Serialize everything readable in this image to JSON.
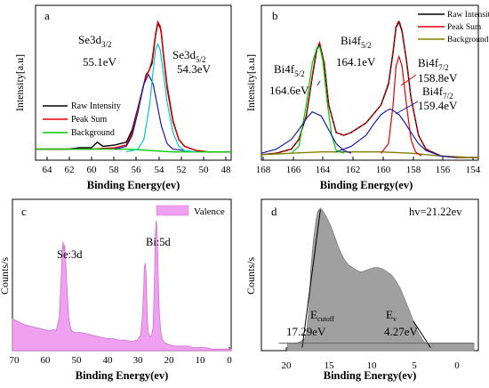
{
  "figure": {
    "panels": [
      {
        "id": "a",
        "panel_label": "a",
        "xlabel": "Binding Energy(ev)",
        "ylabel": "Intensity[a.u]",
        "x_ticks": [
          "64",
          "62",
          "60",
          "58",
          "56",
          "54",
          "52",
          "50",
          "48"
        ],
        "legend": [
          {
            "label": "Raw Intensity",
            "color": "#000000"
          },
          {
            "label": "Peak Sum",
            "color": "#e00000"
          },
          {
            "label": "Background",
            "color": "#00cc00"
          }
        ],
        "annotations": [
          {
            "lines": [
              "Se3d",
              "3/2",
              "55.1eV"
            ]
          },
          {
            "lines": [
              "Se3d",
              "5/2",
              "54.3eV"
            ]
          }
        ]
      },
      {
        "id": "b",
        "panel_label": "b",
        "xlabel": "Binding Energy(ev)",
        "ylabel": "Intensity[a.u]",
        "x_ticks": [
          "168",
          "166",
          "164",
          "162",
          "160",
          "158",
          "156",
          "154"
        ],
        "legend": [
          {
            "label": "Raw Intensity",
            "color": "#000000"
          },
          {
            "label": "Peak Sum",
            "color": "#e00000"
          },
          {
            "label": "Background",
            "color": "#808000"
          }
        ],
        "annotations": [
          {
            "lines": [
              "Bi4f",
              "5/2",
              "164.1eV"
            ]
          },
          {
            "lines": [
              "Bi4f",
              "5/2",
              "164.6eV"
            ]
          },
          {
            "lines": [
              "Bi4f",
              "7/2",
              "158.8eV"
            ]
          },
          {
            "lines": [
              "Bi4f",
              "7/2",
              "159.4eV"
            ]
          }
        ]
      },
      {
        "id": "c",
        "panel_label": "c",
        "xlabel": "Binding Energy(ev)",
        "ylabel": "Counts/s",
        "x_ticks": [
          "70",
          "60",
          "50",
          "40",
          "30",
          "20",
          "10",
          "0"
        ],
        "legend": [
          {
            "label": "Valence",
            "color": "#f0a0f0"
          }
        ],
        "annotations": [
          {
            "lines": [
              "Se:3d"
            ]
          },
          {
            "lines": [
              "Bi:5d"
            ]
          }
        ]
      },
      {
        "id": "d",
        "panel_label": "d",
        "xlabel": "Binding Energy(ev)",
        "ylabel": "Counts/s",
        "x_ticks": [
          "20",
          "15",
          "10",
          "5",
          "0"
        ],
        "legend": [],
        "annotations": [
          {
            "lines": [
              "hv=21.22ev"
            ]
          },
          {
            "lines": [
              "E",
              "cutoff",
              "17.29eV"
            ]
          },
          {
            "lines": [
              "E",
              "v",
              "4.27eV"
            ]
          }
        ]
      }
    ]
  },
  "chart_data": [
    {
      "type": "line",
      "panel": "a",
      "xlabel": "Binding Energy(ev)",
      "ylabel": "Intensity[a.u]",
      "xlim": [
        64.8,
        48
      ],
      "x_reversed": true,
      "series": [
        {
          "name": "Raw Intensity",
          "color": "#000000",
          "x": [
            64.8,
            63,
            62,
            61,
            60,
            59.5,
            59,
            58,
            57,
            56.5,
            56,
            55.5,
            55.3,
            55.1,
            55,
            54.8,
            54.5,
            54.3,
            54.1,
            54,
            53.8,
            53.5,
            53,
            52.5,
            52,
            51,
            50,
            49,
            48
          ],
          "y": [
            0.08,
            0.08,
            0.08,
            0.09,
            0.09,
            0.13,
            0.1,
            0.11,
            0.13,
            0.22,
            0.38,
            0.55,
            0.62,
            0.64,
            0.66,
            0.7,
            0.9,
            0.99,
            0.96,
            0.92,
            0.75,
            0.52,
            0.28,
            0.15,
            0.1,
            0.07,
            0.06,
            0.06,
            0.06
          ]
        },
        {
          "name": "Peak Sum",
          "color": "#e00000",
          "x": [
            64.8,
            62,
            60,
            58,
            57,
            56.5,
            56,
            55.5,
            55.3,
            55.1,
            55,
            54.8,
            54.5,
            54.3,
            54.1,
            54,
            53.8,
            53.5,
            53,
            52.5,
            52,
            51,
            50,
            48
          ],
          "y": [
            0.08,
            0.08,
            0.08,
            0.09,
            0.11,
            0.2,
            0.37,
            0.55,
            0.61,
            0.64,
            0.66,
            0.72,
            0.91,
            1.0,
            0.97,
            0.93,
            0.76,
            0.54,
            0.29,
            0.15,
            0.1,
            0.07,
            0.06,
            0.06
          ]
        },
        {
          "name": "Background",
          "color": "#00cc00",
          "x": [
            64.8,
            62,
            60,
            58,
            57,
            56,
            55,
            54,
            53,
            52,
            51,
            50,
            48
          ],
          "y": [
            0.08,
            0.08,
            0.08,
            0.08,
            0.08,
            0.075,
            0.07,
            0.065,
            0.06,
            0.06,
            0.06,
            0.06,
            0.06
          ]
        },
        {
          "name": "",
          "color": "#1a1aa8",
          "x": [
            58,
            57,
            56.5,
            56,
            55.5,
            55.1,
            54.7,
            54.3,
            54,
            53.5,
            53,
            52
          ],
          "y": [
            0.08,
            0.1,
            0.18,
            0.35,
            0.55,
            0.62,
            0.55,
            0.38,
            0.25,
            0.12,
            0.08,
            0.07
          ]
        },
        {
          "name": "",
          "color": "#00c8c8",
          "x": [
            57,
            56,
            55.5,
            55,
            54.7,
            54.5,
            54.3,
            54.1,
            53.9,
            53.5,
            53,
            52.5,
            52,
            51
          ],
          "y": [
            0.06,
            0.08,
            0.15,
            0.4,
            0.65,
            0.8,
            0.84,
            0.8,
            0.68,
            0.42,
            0.2,
            0.1,
            0.07,
            0.06
          ]
        }
      ]
    },
    {
      "type": "line",
      "panel": "b",
      "xlabel": "Binding Energy(ev)",
      "ylabel": "Intensity[a.u]",
      "xlim": [
        168,
        153.5
      ],
      "x_reversed": true,
      "series": [
        {
          "name": "Raw Intensity",
          "color": "#000000",
          "x": [
            168,
            167,
            166,
            165.5,
            165,
            164.6,
            164.3,
            164.1,
            163.8,
            163.5,
            163,
            162.5,
            162,
            161,
            160,
            159.5,
            159.2,
            159,
            158.8,
            158.6,
            158.3,
            158,
            157.5,
            157,
            156,
            155,
            154,
            153.5
          ],
          "y": [
            0.04,
            0.05,
            0.08,
            0.15,
            0.32,
            0.6,
            0.8,
            0.84,
            0.7,
            0.4,
            0.2,
            0.18,
            0.2,
            0.27,
            0.4,
            0.55,
            0.78,
            0.96,
            1.0,
            0.93,
            0.72,
            0.45,
            0.18,
            0.08,
            0.03,
            0.02,
            0.02,
            0.02
          ]
        },
        {
          "name": "Peak Sum",
          "color": "#e00000",
          "x": [
            168,
            167,
            166,
            165.5,
            165,
            164.6,
            164.3,
            164.1,
            163.8,
            163.5,
            163,
            162.5,
            162,
            161,
            160,
            159.5,
            159.2,
            159,
            158.8,
            158.6,
            158.3,
            158,
            157.5,
            157,
            156,
            155,
            153.5
          ],
          "y": [
            0.04,
            0.05,
            0.08,
            0.15,
            0.32,
            0.61,
            0.81,
            0.85,
            0.7,
            0.4,
            0.2,
            0.18,
            0.2,
            0.27,
            0.4,
            0.56,
            0.79,
            0.97,
            1.01,
            0.94,
            0.72,
            0.45,
            0.18,
            0.08,
            0.03,
            0.02,
            0.02
          ]
        },
        {
          "name": "Background",
          "color": "#808000",
          "x": [
            168,
            166,
            164,
            162,
            160,
            158,
            156,
            154,
            153.5
          ],
          "y": [
            0.04,
            0.05,
            0.06,
            0.06,
            0.06,
            0.05,
            0.03,
            0.02,
            0.02
          ]
        },
        {
          "name": "",
          "color": "#e00000",
          "x": [
            160,
            159.5,
            159.2,
            159,
            158.8,
            158.6,
            158.3,
            158,
            157.7,
            157.3
          ],
          "y": [
            0.05,
            0.12,
            0.4,
            0.68,
            0.75,
            0.68,
            0.4,
            0.15,
            0.06,
            0.03
          ]
        },
        {
          "name": "",
          "color": "#1a1aa8",
          "x": [
            163,
            162,
            161,
            160.5,
            160,
            159.6,
            159.4,
            159.2,
            158.8,
            158.4,
            158,
            157.5,
            157,
            156,
            155
          ],
          "y": [
            0.06,
            0.1,
            0.18,
            0.26,
            0.33,
            0.36,
            0.37,
            0.36,
            0.33,
            0.27,
            0.2,
            0.12,
            0.07,
            0.03,
            0.02
          ]
        },
        {
          "name": "",
          "color": "#00cc00",
          "x": [
            166,
            165.5,
            165,
            164.6,
            164.3,
            164.1,
            163.9,
            163.6,
            163.3,
            163,
            162.5
          ],
          "y": [
            0.05,
            0.1,
            0.4,
            0.7,
            0.81,
            0.82,
            0.72,
            0.42,
            0.18,
            0.07,
            0.05
          ]
        },
        {
          "name": "",
          "color": "#1a1aa8",
          "x": [
            168,
            167,
            166,
            165.5,
            165,
            164.6,
            164,
            163.5,
            163,
            162.5,
            162
          ],
          "y": [
            0.05,
            0.08,
            0.15,
            0.22,
            0.3,
            0.35,
            0.32,
            0.22,
            0.12,
            0.07,
            0.05
          ]
        }
      ]
    },
    {
      "type": "area",
      "panel": "c",
      "xlabel": "Binding Energy(ev)",
      "ylabel": "Counts/s",
      "xlim": [
        70,
        0
      ],
      "x_reversed": true,
      "series": [
        {
          "name": "Valence",
          "color": "#f0a0f0",
          "x": [
            70,
            68,
            66,
            64,
            62,
            60,
            58,
            57,
            56,
            55,
            54.5,
            54,
            53.8,
            53.5,
            53.3,
            53,
            52.5,
            52,
            51.5,
            51,
            50,
            48,
            46,
            44,
            42,
            40,
            38,
            36,
            34,
            32,
            30,
            29,
            28.5,
            28,
            27.8,
            27.5,
            27.2,
            27,
            26.8,
            26.5,
            26,
            25.5,
            25,
            24.6,
            24.3,
            24,
            23.8,
            23.5,
            23.3,
            23,
            22.5,
            22,
            21,
            20,
            18,
            16,
            14,
            12,
            10,
            8,
            6,
            4,
            2,
            1,
            0
          ],
          "y": [
            0.21,
            0.19,
            0.17,
            0.16,
            0.15,
            0.14,
            0.13,
            0.14,
            0.13,
            0.22,
            0.45,
            0.68,
            0.72,
            0.66,
            0.7,
            0.62,
            0.4,
            0.22,
            0.16,
            0.13,
            0.12,
            0.12,
            0.11,
            0.1,
            0.09,
            0.08,
            0.08,
            0.07,
            0.07,
            0.06,
            0.07,
            0.1,
            0.2,
            0.4,
            0.55,
            0.58,
            0.5,
            0.35,
            0.2,
            0.12,
            0.09,
            0.1,
            0.15,
            0.4,
            0.76,
            0.86,
            0.82,
            0.65,
            0.45,
            0.25,
            0.12,
            0.07,
            0.05,
            0.04,
            0.03,
            0.03,
            0.03,
            0.02,
            0.02,
            0.02,
            0.01,
            0.01,
            0.01,
            0.01,
            0.01
          ]
        }
      ]
    },
    {
      "type": "area",
      "panel": "d",
      "xlabel": "Binding Energy(ev)",
      "ylabel": "Counts/s",
      "xlim": [
        23,
        -2
      ],
      "x_reversed": true,
      "series": [
        {
          "name": "",
          "color": "#a0a0a0",
          "x": [
            20,
            19,
            18.5,
            18,
            17.8,
            17.5,
            17.3,
            17,
            16.7,
            16.5,
            16.2,
            16,
            15.7,
            15.5,
            15,
            14.5,
            14,
            13.5,
            13,
            12.5,
            12,
            11.5,
            11,
            10.5,
            10,
            9.5,
            9,
            8.5,
            8,
            7.5,
            7,
            6.5,
            6,
            5.5,
            5,
            4.5,
            4.27,
            4,
            3,
            0,
            -1.5
          ],
          "y": [
            0.05,
            0.05,
            0.06,
            0.08,
            0.12,
            0.3,
            0.55,
            0.75,
            0.88,
            0.94,
            0.96,
            0.95,
            0.92,
            0.9,
            0.84,
            0.76,
            0.68,
            0.62,
            0.58,
            0.56,
            0.54,
            0.53,
            0.54,
            0.55,
            0.56,
            0.56,
            0.55,
            0.53,
            0.51,
            0.47,
            0.42,
            0.35,
            0.28,
            0.2,
            0.13,
            0.08,
            0.06,
            0.05,
            0.05,
            0.05,
            0.05
          ]
        }
      ],
      "guides": [
        {
          "label": "Ecutoff",
          "x": [
            18.3,
            16.2
          ],
          "y": [
            0.02,
            0.95
          ]
        },
        {
          "label": "Ev",
          "x": [
            3.5,
            5.5
          ],
          "y": [
            0.02,
            0.2
          ]
        }
      ]
    }
  ]
}
